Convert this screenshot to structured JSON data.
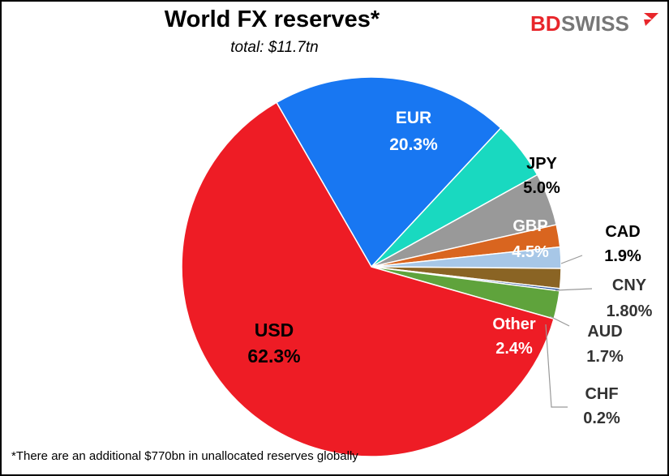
{
  "chart_data": {
    "type": "pie",
    "title": "World FX reserves*",
    "subtitle": "total:  $11.7tn",
    "footnote": "*There are an additional $770bn in unallocated reserves globally",
    "slices": [
      {
        "name": "EUR",
        "value": 20.3,
        "value_label": "20.3%",
        "color": "#1877f2",
        "label_color": "#ffffff"
      },
      {
        "name": "JPY",
        "value": 5.0,
        "value_label": "5.0%",
        "color": "#19d9c0",
        "label_color": "#000000"
      },
      {
        "name": "GBP",
        "value": 4.5,
        "value_label": "4.5%",
        "color": "#999999",
        "label_color": "#ffffff"
      },
      {
        "name": "CAD",
        "value": 1.9,
        "value_label": "1.9%",
        "color": "#d9651f",
        "label_color": "#000000"
      },
      {
        "name": "CNY",
        "value": 1.8,
        "value_label": "1.80%",
        "color": "#a7c7e7",
        "label_color": "#333333"
      },
      {
        "name": "AUD",
        "value": 1.7,
        "value_label": "1.7%",
        "color": "#8a6424",
        "label_color": "#333333"
      },
      {
        "name": "CHF",
        "value": 0.2,
        "value_label": "0.2%",
        "color": "#1f4e9a",
        "label_color": "#333333"
      },
      {
        "name": "Other",
        "value": 2.4,
        "value_label": "2.4%",
        "color": "#5fa33c",
        "label_color": "#ffffff"
      },
      {
        "name": "USD",
        "value": 62.3,
        "value_label": "62.3%",
        "color": "#ee1c25",
        "label_color": "#000000"
      }
    ]
  },
  "logo": {
    "text_bd": "BD",
    "text_swiss": "SWISS",
    "color_bd": "#e8262b",
    "color_swiss": "#777777"
  }
}
